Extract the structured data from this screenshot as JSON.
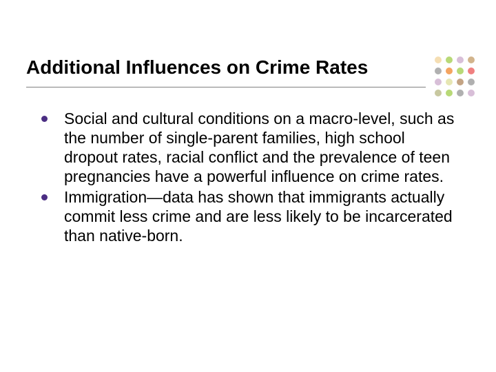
{
  "slide": {
    "title": "Additional Influences on Crime Rates",
    "title_color": "#000000",
    "title_fontsize": 28,
    "title_fontweight": "bold",
    "underline_color": "#808080",
    "background_color": "#ffffff",
    "body_fontsize": 23,
    "body_color": "#000000",
    "bullet_color": "#4b2e83",
    "bullets": [
      "Social and cultural conditions on a macro-level, such as the number of single-parent families, high school dropout rates, racial conflict and the prevalence of teen pregnancies have a powerful influence on crime rates.",
      "Immigration—data has shown that immigrants actually commit less crime and are less likely to be incarcerated than native-born."
    ]
  },
  "dot_decoration": {
    "rows": 4,
    "cols": 4,
    "dot_size": 10,
    "gap": 3,
    "colors": [
      [
        "#f5deb3",
        "#b8d977",
        "#d8bfd8",
        "#d2b48c"
      ],
      [
        "#b0b0b0",
        "#f4a460",
        "#b8d977",
        "#f08080"
      ],
      [
        "#d8bfd8",
        "#e6e6b3",
        "#c4a484",
        "#b0b0b0"
      ],
      [
        "#c8c8a0",
        "#b8d977",
        "#b0b0b0",
        "#d8bfd8"
      ]
    ]
  }
}
